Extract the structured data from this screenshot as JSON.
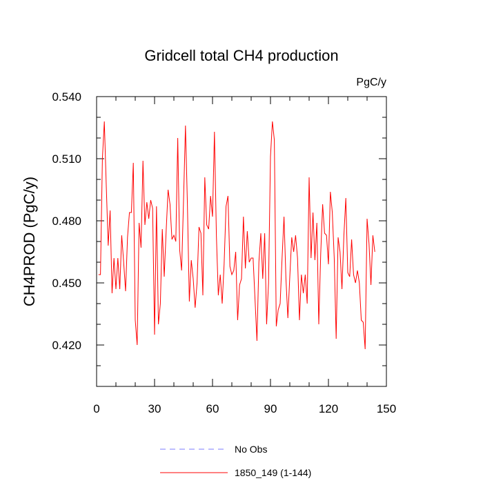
{
  "chart_data": {
    "type": "line",
    "title": "Gridcell total CH4 production",
    "units_label": "PgC/y",
    "ylabel": "CH4PROD  (PgC/y)",
    "xlabel": "",
    "xlim": [
      0,
      150
    ],
    "ylim": [
      0.4,
      0.54
    ],
    "x_ticks": [
      0,
      30,
      60,
      90,
      120,
      150
    ],
    "x_tick_labels": [
      "0",
      "30",
      "60",
      "90",
      "120",
      "150"
    ],
    "y_ticks": [
      0.42,
      0.45,
      0.48,
      0.51,
      0.54
    ],
    "y_tick_labels": [
      "0.420",
      "0.450",
      "0.480",
      "0.510",
      "0.540"
    ],
    "grid": false,
    "legend_position": "bottom-center",
    "series": [
      {
        "name": "No Obs",
        "color": "#7b7bff",
        "dash": "dashed",
        "values": []
      },
      {
        "name": "1850_149 (1-144)",
        "color": "#ff0000",
        "dash": "solid",
        "x_start": 1,
        "values": [
          0.454,
          0.454,
          0.51,
          0.528,
          0.497,
          0.468,
          0.485,
          0.445,
          0.462,
          0.447,
          0.462,
          0.447,
          0.473,
          0.46,
          0.446,
          0.472,
          0.484,
          0.484,
          0.508,
          0.432,
          0.42,
          0.479,
          0.467,
          0.509,
          0.478,
          0.489,
          0.481,
          0.49,
          0.486,
          0.425,
          0.487,
          0.43,
          0.44,
          0.476,
          0.453,
          0.475,
          0.495,
          0.488,
          0.471,
          0.473,
          0.47,
          0.52,
          0.466,
          0.456,
          0.49,
          0.526,
          0.488,
          0.441,
          0.461,
          0.452,
          0.438,
          0.45,
          0.477,
          0.474,
          0.444,
          0.501,
          0.478,
          0.476,
          0.492,
          0.482,
          0.523,
          0.473,
          0.444,
          0.454,
          0.44,
          0.459,
          0.487,
          0.492,
          0.458,
          0.454,
          0.456,
          0.465,
          0.432,
          0.449,
          0.452,
          0.482,
          0.457,
          0.475,
          0.46,
          0.462,
          0.462,
          0.442,
          0.422,
          0.46,
          0.474,
          0.452,
          0.474,
          0.43,
          0.45,
          0.511,
          0.528,
          0.519,
          0.429,
          0.437,
          0.44,
          0.462,
          0.482,
          0.452,
          0.433,
          0.453,
          0.472,
          0.465,
          0.473,
          0.462,
          0.432,
          0.454,
          0.445,
          0.454,
          0.44,
          0.501,
          0.462,
          0.484,
          0.461,
          0.479,
          0.43,
          0.464,
          0.488,
          0.474,
          0.473,
          0.459,
          0.494,
          0.484,
          0.462,
          0.423,
          0.472,
          0.465,
          0.447,
          0.473,
          0.491,
          0.455,
          0.453,
          0.471,
          0.454,
          0.45,
          0.456,
          0.45,
          0.432,
          0.431,
          0.418,
          0.481,
          0.469,
          0.449,
          0.473,
          0.465
        ]
      }
    ]
  }
}
